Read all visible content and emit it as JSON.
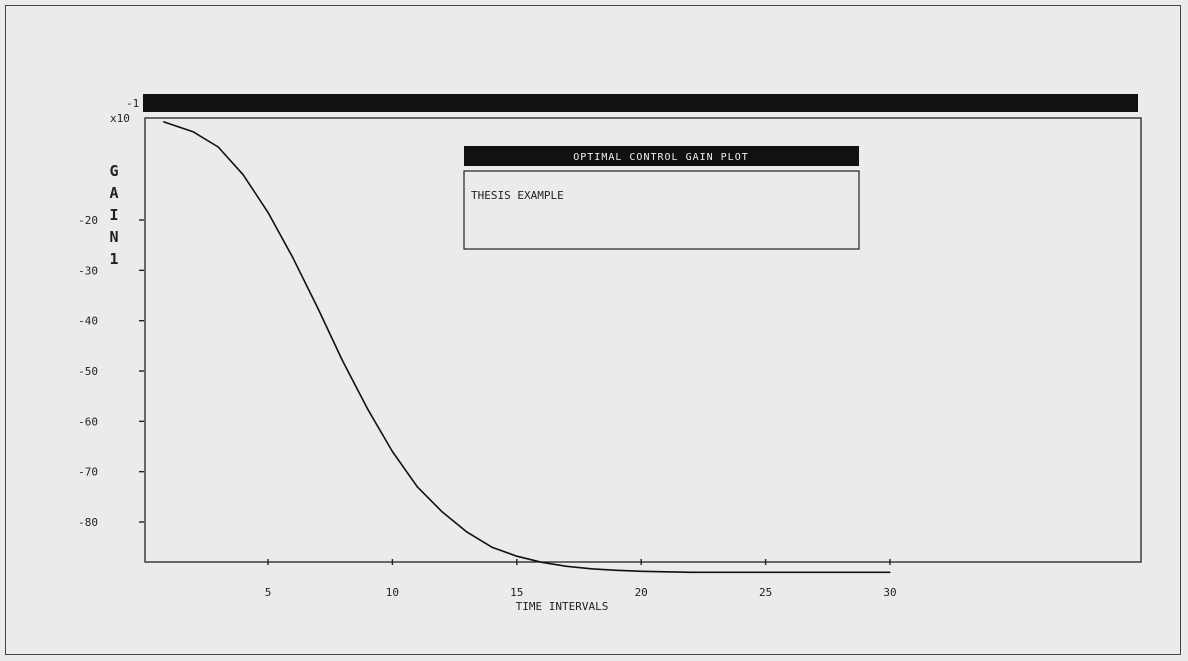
{
  "chart_data": {
    "type": "line",
    "title": "OPTIMAL CONTROL GAIN PLOT",
    "subtitle": "THESIS EXAMPLE",
    "xlabel": "TIME INTERVALS",
    "ylabel": "GAIN 1",
    "y_multiplier_label": "x10",
    "y_multiplier_exp": "-1",
    "xlim": [
      0,
      40
    ],
    "ylim": [
      -9,
      0
    ],
    "x_ticks": [
      5,
      10,
      15,
      20,
      25,
      30
    ],
    "x_tick_labels": [
      "5",
      "10",
      "15",
      "20",
      "25",
      "30"
    ],
    "y_ticks": [
      -2,
      -3,
      -4,
      -5,
      -6,
      -7,
      -8
    ],
    "y_tick_labels": [
      "-20",
      "-30",
      "-40",
      "-50",
      "-60",
      "-70",
      "-80"
    ],
    "grid": false,
    "legend": "none",
    "series": [
      {
        "color": "#111111",
        "x": [
          0.8,
          2,
          3,
          4,
          5,
          6,
          7,
          8,
          9,
          10,
          11,
          12,
          13,
          14,
          15,
          16,
          17,
          18,
          19,
          20,
          22,
          25,
          30
        ],
        "y": [
          -0.05,
          -0.25,
          -0.55,
          -1.1,
          -1.85,
          -2.75,
          -3.75,
          -4.8,
          -5.75,
          -6.6,
          -7.3,
          -7.8,
          -8.2,
          -8.5,
          -8.68,
          -8.8,
          -8.88,
          -8.93,
          -8.96,
          -8.98,
          -9.0,
          -9.0,
          -9.0
        ]
      }
    ]
  },
  "top_bar_color": "#111111"
}
